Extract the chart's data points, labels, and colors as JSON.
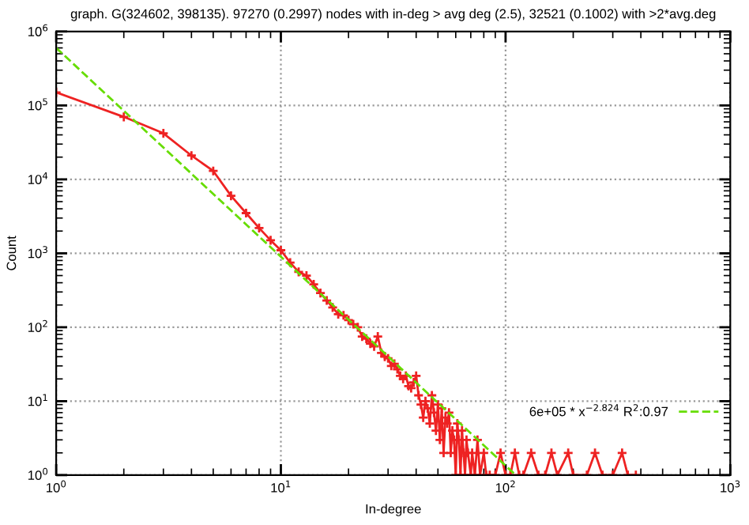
{
  "chart_data": {
    "type": "line",
    "title": "graph. G(324602, 398135). 97270 (0.2997) nodes with in-deg > avg deg (2.5), 32521 (0.1002) with >2*avg.deg",
    "xlabel": "In-degree",
    "ylabel": "Count",
    "log": "xy",
    "grid": true,
    "legend": "bottom right",
    "xlim": [
      1,
      1000
    ],
    "ylim": [
      1,
      1000000
    ],
    "xticks": [
      {
        "value": 1,
        "label": "10$^{0}$"
      },
      {
        "value": 10,
        "label": "10$^{1}$"
      },
      {
        "value": 100,
        "label": "10$^{2}$"
      },
      {
        "value": 1000,
        "label": "10$^{3}$"
      }
    ],
    "yticks": [
      {
        "value": 1,
        "label": "10$^{0}$"
      },
      {
        "value": 10,
        "label": "10$^{1}$"
      },
      {
        "value": 100,
        "label": "10$^{2}$"
      },
      {
        "value": 1000,
        "label": "10$^{3}$"
      },
      {
        "value": 10000,
        "label": "10$^{4}$"
      },
      {
        "value": 100000,
        "label": "10$^{5}$"
      },
      {
        "value": 1000000,
        "label": "10$^{6}$"
      }
    ],
    "series": [
      {
        "color": "#ee2222",
        "marker": "cross",
        "line_style": "solid",
        "x": [
          1,
          2,
          3,
          4,
          5,
          6,
          7,
          8,
          9,
          10,
          11,
          12,
          13,
          14,
          15,
          16,
          17,
          18,
          19,
          20,
          21,
          22,
          23,
          24,
          25,
          26,
          27,
          28,
          29,
          30,
          31,
          32,
          33,
          34,
          35,
          36,
          37,
          38,
          39,
          40,
          41,
          42,
          43,
          44,
          45,
          46,
          47,
          48,
          49,
          50,
          51,
          52,
          53,
          54,
          55,
          56,
          57,
          58,
          59,
          60,
          61,
          62,
          63,
          64,
          65,
          66,
          67,
          68,
          70,
          71,
          73,
          75,
          77,
          80,
          82,
          85,
          90,
          95,
          100,
          105,
          110,
          115,
          120,
          130,
          140,
          150,
          160,
          170,
          190,
          200,
          230,
          250,
          270,
          300,
          330,
          350,
          380
        ],
        "values": [
          150000,
          70000,
          42000,
          21000,
          13000,
          6000,
          3500,
          2200,
          1500,
          1100,
          750,
          560,
          500,
          380,
          290,
          230,
          185,
          150,
          145,
          125,
          110,
          100,
          75,
          70,
          60,
          55,
          75,
          45,
          40,
          38,
          30,
          32,
          27,
          22,
          20,
          22,
          16,
          15,
          18,
          22,
          12,
          9,
          6,
          10,
          8,
          5,
          12,
          7,
          4,
          9,
          3,
          8,
          2,
          6,
          5,
          7,
          2,
          4,
          3,
          1,
          5,
          3,
          1,
          4,
          2,
          1,
          3,
          2,
          1,
          2,
          1,
          3,
          1,
          2,
          1,
          1,
          1,
          2,
          1,
          1,
          2,
          1,
          1,
          2,
          1,
          1,
          2,
          1,
          2,
          1,
          1,
          2,
          1,
          1,
          2,
          1,
          1
        ]
      },
      {
        "name": "6e+05 * x$^{−2.824}$ R$^{2}$:0.97",
        "color": "#66dd00",
        "marker": "none",
        "line_style": "dashed",
        "x": [
          1,
          111
        ],
        "values": [
          600000,
          1
        ]
      }
    ]
  }
}
